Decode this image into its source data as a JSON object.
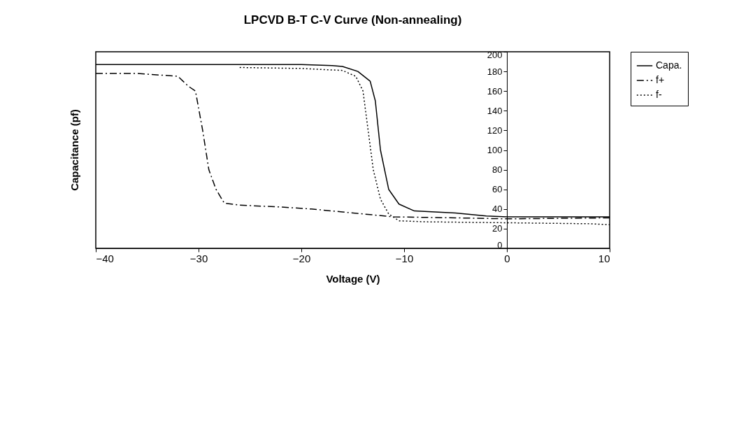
{
  "chart_data": {
    "type": "line",
    "title": "LPCVD B-T C-V Curve (Non-annealing)",
    "xlabel": "Voltage (V)",
    "ylabel": "Capacitance (pf)",
    "xlim": [
      -40,
      10
    ],
    "xticks": [
      -40,
      -30,
      -20,
      -10,
      0,
      10
    ],
    "ylim": [
      0,
      200
    ],
    "yticks": [
      0,
      20,
      40,
      60,
      80,
      100,
      120,
      140,
      160,
      180,
      200
    ],
    "grid": false,
    "legend": "right",
    "marker": "none",
    "series": [
      {
        "name": "Capa.",
        "color": "#000000",
        "line_style": "solid",
        "x": [
          -40,
          -30,
          -20,
          -17,
          -16,
          -14.5,
          -13.3,
          -12.8,
          -12.3,
          -11.5,
          -10.5,
          -9,
          -5,
          -2,
          0,
          10
        ],
        "values": [
          187,
          187,
          187,
          186,
          185,
          180,
          170,
          150,
          100,
          60,
          45,
          38,
          36,
          33,
          32,
          32
        ]
      },
      {
        "name": "f+",
        "color": "#000000",
        "line_style": "dashed",
        "x": [
          -40,
          -36,
          -32,
          -31,
          -30.3,
          -29.6,
          -29,
          -28.3,
          -27.5,
          -26,
          -22,
          -19,
          -16,
          -13,
          -11,
          -5,
          0,
          10
        ],
        "values": [
          178,
          178,
          175,
          165,
          160,
          120,
          80,
          60,
          46,
          44,
          42,
          40,
          37,
          34,
          32,
          31,
          30,
          31
        ]
      },
      {
        "name": "f-",
        "color": "#000000",
        "line_style": "dotted",
        "x": [
          -26,
          -20,
          -16,
          -14.7,
          -14,
          -13.5,
          -13,
          -12.3,
          -11.5,
          -10.5,
          -8,
          0,
          8,
          10
        ],
        "values": [
          184,
          183,
          181,
          175,
          160,
          120,
          80,
          50,
          35,
          28,
          27,
          26,
          25,
          24
        ]
      }
    ]
  }
}
